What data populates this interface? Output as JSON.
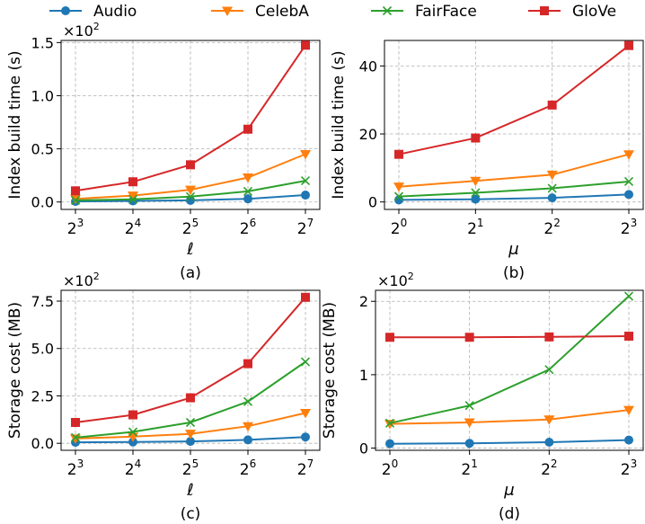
{
  "legend": {
    "position": "top-center",
    "entries": [
      {
        "name": "Audio",
        "color": "#1f77b4",
        "marker": "circle"
      },
      {
        "name": "CelebA",
        "color": "#ff7f0e",
        "marker": "triangle-down"
      },
      {
        "name": "FairFace",
        "color": "#2ca02c",
        "marker": "x"
      },
      {
        "name": "GloVe",
        "color": "#d62728",
        "marker": "square"
      }
    ]
  },
  "chart_data": [
    {
      "id": "a",
      "type": "line",
      "caption": "(a)",
      "xlabel": "ℓ",
      "ylabel": "Index build time (s)",
      "multiplier": {
        "base": "×10",
        "exp": "2"
      },
      "x_ticks": [
        {
          "base": "2",
          "exp": "3"
        },
        {
          "base": "2",
          "exp": "4"
        },
        {
          "base": "2",
          "exp": "5"
        },
        {
          "base": "2",
          "exp": "6"
        },
        {
          "base": "2",
          "exp": "7"
        }
      ],
      "yticks": [
        0.0,
        0.5,
        1.0,
        1.5
      ],
      "ytick_labels": [
        "0.0",
        "0.5",
        "1.0",
        "1.5"
      ],
      "ylim": [
        -0.07,
        1.52
      ],
      "grid": true,
      "series": [
        {
          "name": "Audio",
          "values": [
            0.005,
            0.01,
            0.015,
            0.03,
            0.065
          ]
        },
        {
          "name": "CelebA",
          "values": [
            0.03,
            0.06,
            0.115,
            0.23,
            0.45
          ]
        },
        {
          "name": "FairFace",
          "values": [
            0.015,
            0.025,
            0.05,
            0.1,
            0.2
          ]
        },
        {
          "name": "GloVe",
          "values": [
            0.105,
            0.19,
            0.35,
            0.685,
            1.475
          ]
        }
      ]
    },
    {
      "id": "b",
      "type": "line",
      "caption": "(b)",
      "xlabel": "μ",
      "ylabel": "Index build time (s)",
      "multiplier": null,
      "x_ticks": [
        {
          "base": "2",
          "exp": "0"
        },
        {
          "base": "2",
          "exp": "1"
        },
        {
          "base": "2",
          "exp": "2"
        },
        {
          "base": "2",
          "exp": "3"
        }
      ],
      "yticks": [
        0,
        20,
        40
      ],
      "ytick_labels": [
        "0",
        "20",
        "40"
      ],
      "ylim": [
        -2.2,
        47.5
      ],
      "grid": true,
      "series": [
        {
          "name": "Audio",
          "values": [
            0.6,
            0.8,
            1.2,
            2.2
          ]
        },
        {
          "name": "CelebA",
          "values": [
            4.5,
            6.2,
            8.0,
            14.0
          ]
        },
        {
          "name": "FairFace",
          "values": [
            1.6,
            2.7,
            4.0,
            6.0
          ]
        },
        {
          "name": "GloVe",
          "values": [
            14.0,
            18.8,
            28.5,
            46.0
          ]
        }
      ]
    },
    {
      "id": "c",
      "type": "line",
      "caption": "(c)",
      "xlabel": "ℓ",
      "ylabel": "Storage cost (MB)",
      "multiplier": {
        "base": "×10",
        "exp": "2"
      },
      "x_ticks": [
        {
          "base": "2",
          "exp": "3"
        },
        {
          "base": "2",
          "exp": "4"
        },
        {
          "base": "2",
          "exp": "5"
        },
        {
          "base": "2",
          "exp": "6"
        },
        {
          "base": "2",
          "exp": "7"
        }
      ],
      "yticks": [
        0.0,
        2.5,
        5.0,
        7.5
      ],
      "ytick_labels": [
        "0.0",
        "2.5",
        "5.0",
        "7.5"
      ],
      "ylim": [
        -0.37,
        8.07
      ],
      "grid": true,
      "series": [
        {
          "name": "Audio",
          "values": [
            0.05,
            0.07,
            0.1,
            0.18,
            0.33
          ]
        },
        {
          "name": "CelebA",
          "values": [
            0.25,
            0.35,
            0.5,
            0.9,
            1.6
          ]
        },
        {
          "name": "FairFace",
          "values": [
            0.3,
            0.6,
            1.1,
            2.2,
            4.3
          ]
        },
        {
          "name": "GloVe",
          "values": [
            1.1,
            1.5,
            2.4,
            4.2,
            7.7
          ]
        }
      ]
    },
    {
      "id": "d",
      "type": "line",
      "caption": "(d)",
      "xlabel": "μ",
      "ylabel": "Storage cost (MB)",
      "multiplier": {
        "base": "×10",
        "exp": "2"
      },
      "x_ticks": [
        {
          "base": "2",
          "exp": "0"
        },
        {
          "base": "2",
          "exp": "1"
        },
        {
          "base": "2",
          "exp": "2"
        },
        {
          "base": "2",
          "exp": "3"
        }
      ],
      "yticks": [
        0,
        1,
        2
      ],
      "ytick_labels": [
        "0",
        "1",
        "2"
      ],
      "ylim": [
        -0.03,
        2.15
      ],
      "grid": true,
      "series": [
        {
          "name": "Audio",
          "values": [
            0.06,
            0.065,
            0.08,
            0.11
          ]
        },
        {
          "name": "CelebA",
          "values": [
            0.33,
            0.35,
            0.39,
            0.52
          ]
        },
        {
          "name": "FairFace",
          "values": [
            0.34,
            0.58,
            1.07,
            2.07
          ]
        },
        {
          "name": "GloVe",
          "values": [
            1.51,
            1.51,
            1.515,
            1.525
          ]
        }
      ]
    }
  ]
}
